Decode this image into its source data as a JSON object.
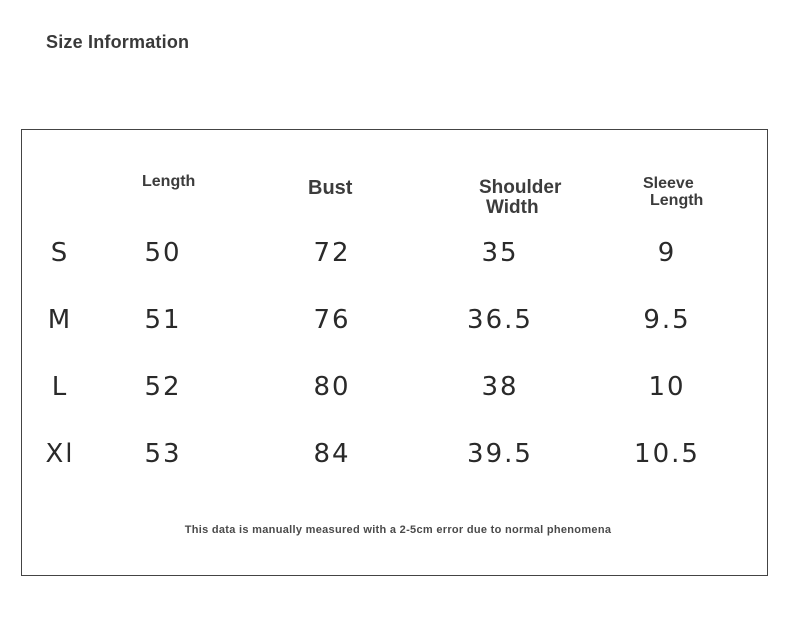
{
  "title": "Size Information",
  "headers": {
    "length": "Length",
    "bust": "Bust",
    "shoulder_width": [
      "Shoulder",
      "Width"
    ],
    "sleeve_length": [
      "Sleeve",
      "Length"
    ]
  },
  "rows": [
    {
      "size": "S",
      "length": "50",
      "bust": "72",
      "shoulder_width": "35",
      "sleeve_length": "9"
    },
    {
      "size": "M",
      "length": "51",
      "bust": "76",
      "shoulder_width": "36.5",
      "sleeve_length": "9.5"
    },
    {
      "size": "L",
      "length": "52",
      "bust": "80",
      "shoulder_width": "38",
      "sleeve_length": "10"
    },
    {
      "size": "Xl",
      "length": "53",
      "bust": "84",
      "shoulder_width": "39.5",
      "sleeve_length": "10.5"
    }
  ],
  "footnote": "This data is manually measured with a 2-5cm error due to normal phenomena"
}
